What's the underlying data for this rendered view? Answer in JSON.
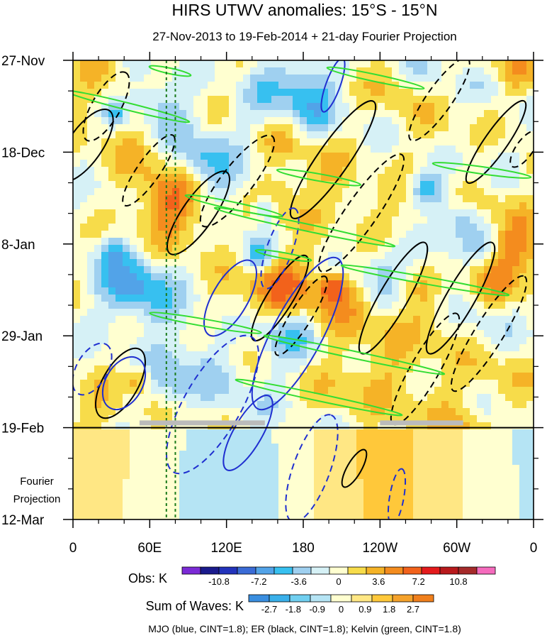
{
  "chart_data": {
    "type": "heatmap",
    "title": "HIRS UTWV anomalies: 15°S - 15°N",
    "subtitle": "27-Nov-2013 to 19-Feb-2014 + 21-day Fourier Projection",
    "x_tick_labels": [
      "0",
      "60E",
      "120E",
      "180",
      "120W",
      "60W",
      "0"
    ],
    "x_ticks_deg": [
      0,
      60,
      120,
      180,
      240,
      300,
      360
    ],
    "xlim": [
      0,
      360
    ],
    "y_tick_labels": [
      "27-Nov",
      "18-Dec",
      "8-Jan",
      "29-Jan",
      "19-Feb",
      "12-Mar"
    ],
    "y_ticks_day": [
      0,
      21,
      42,
      63,
      84,
      105
    ],
    "ylim_days": [
      0,
      105
    ],
    "projection_start_day": 84,
    "projection_label": [
      "Fourier",
      "Projection"
    ],
    "reference_lines_deg": [
      73,
      80
    ],
    "missing_data_bars": [
      {
        "from_deg": 52,
        "to_deg": 150,
        "day": 83
      },
      {
        "from_deg": 240,
        "to_deg": 305,
        "day": 83
      }
    ],
    "obs_colorbar": {
      "label": "Obs: K",
      "colors": [
        "#7b2ad6",
        "#1a1a8c",
        "#2233bb",
        "#3a6bd6",
        "#52a3e8",
        "#37c0f0",
        "#9fd0f0",
        "#d6f1f6",
        "#ffffd0",
        "#f7dc4a",
        "#f5b327",
        "#f48c1e",
        "#f2621b",
        "#e41a1c",
        "#b8191c",
        "#a52a2a",
        "#f56bbd"
      ],
      "tick_labels": [
        "-10.8",
        "-7.2",
        "-3.6",
        "0",
        "3.6",
        "7.2",
        "10.8"
      ]
    },
    "waves_colorbar": {
      "label": "Sum of Waves: K",
      "colors": [
        "#3a8ee0",
        "#3ab0ea",
        "#70cff0",
        "#b5e4f4",
        "#ffffd0",
        "#ffe784",
        "#ffc83a",
        "#f5a22b",
        "#f07f1c"
      ],
      "tick_labels": [
        "-2.7",
        "-1.8",
        "-0.9",
        "0",
        "0.9",
        "1.8",
        "2.7"
      ]
    },
    "contour_series": [
      {
        "name": "MJO",
        "color": "#1f2fd0",
        "cint": 1.8
      },
      {
        "name": "ER",
        "color": "#000000",
        "cint": 1.8
      },
      {
        "name": "Kelvin",
        "color": "#33dd33",
        "cint": 1.8
      }
    ],
    "footer": "MJO (blue, CINT=1.8); ER (black, CINT=1.8); Kelvin (green, CINT=1.8)"
  }
}
